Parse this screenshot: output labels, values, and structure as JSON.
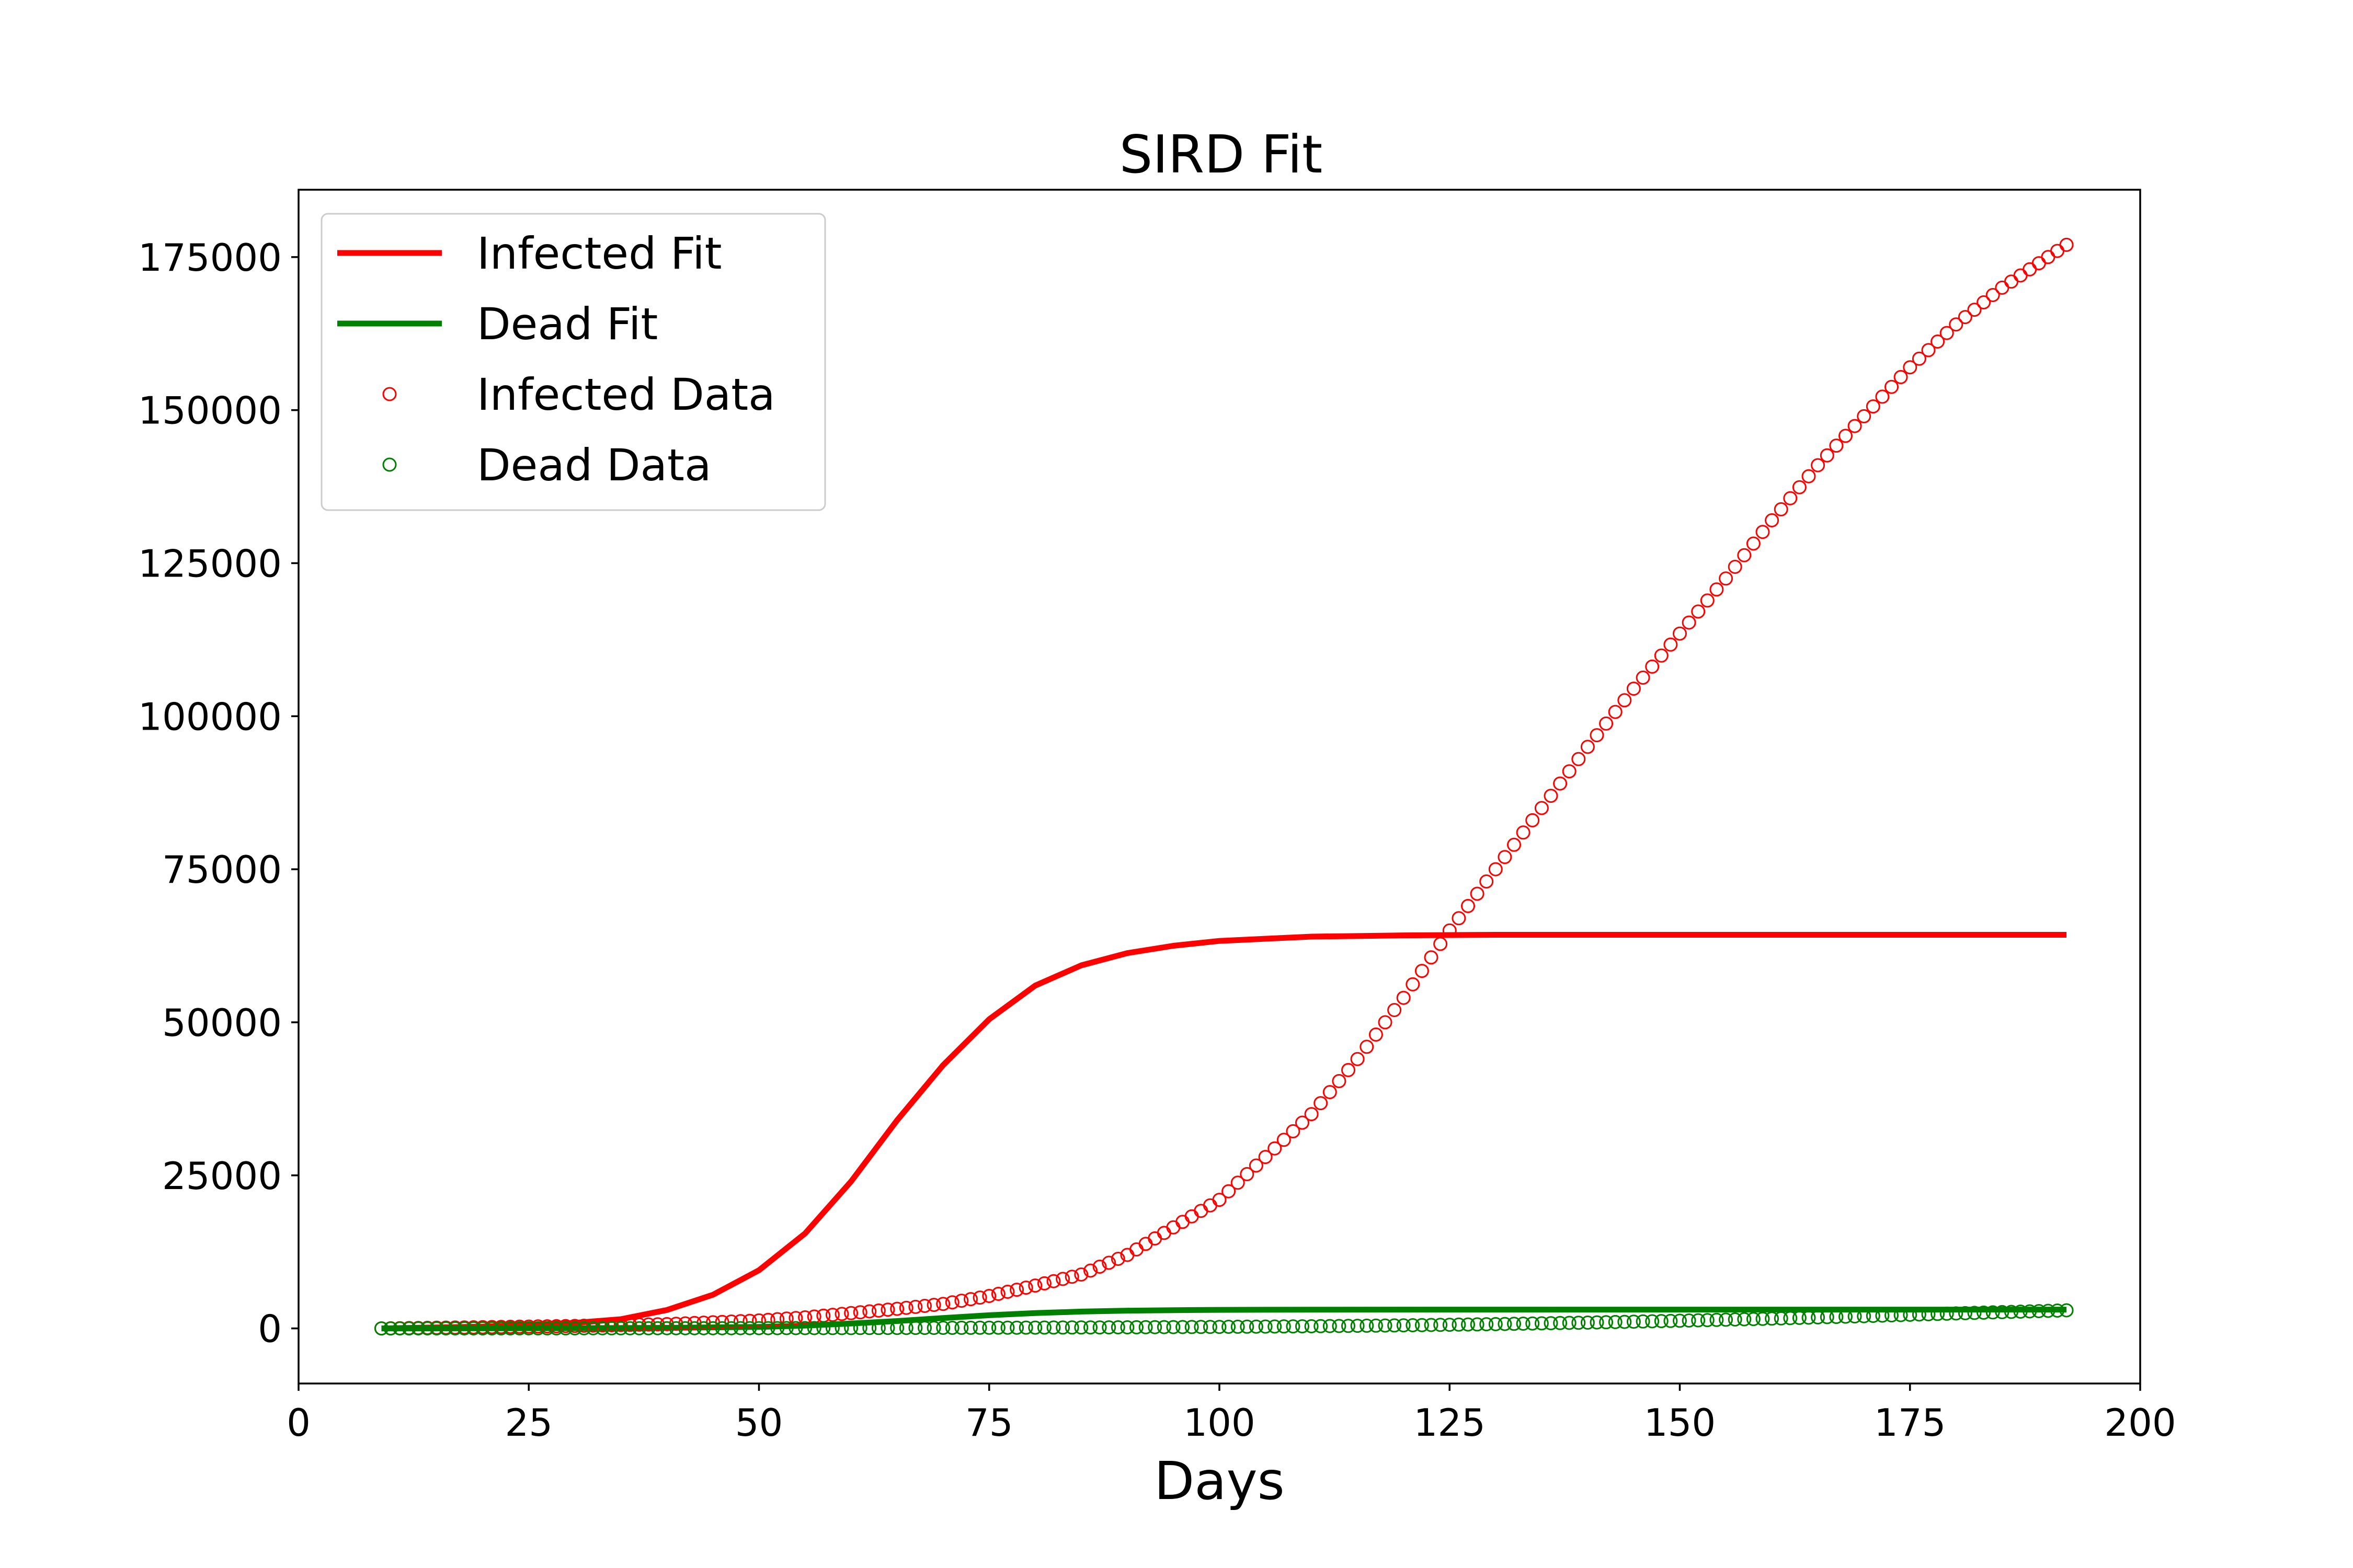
{
  "chart_data": {
    "type": "line",
    "title": "SIRD Fit",
    "xlabel": "Days",
    "ylabel": "",
    "xlim": [
      0,
      200
    ],
    "ylim": [
      -9000,
      186000
    ],
    "xticks": [
      0,
      25,
      50,
      75,
      100,
      125,
      150,
      175,
      200
    ],
    "yticks": [
      0,
      25000,
      50000,
      75000,
      100000,
      125000,
      150000,
      175000
    ],
    "xtick_labels": [
      "0",
      "25",
      "50",
      "75",
      "100",
      "125",
      "150",
      "175",
      "200"
    ],
    "ytick_labels": [
      "0",
      "25000",
      "50000",
      "75000",
      "100000",
      "125000",
      "150000",
      "175000"
    ],
    "grid": false,
    "legend_position": "top-left",
    "colors": {
      "infected": "#ff0000",
      "dead": "#008000",
      "axes": "#000000"
    },
    "series": [
      {
        "name": "Infected Fit",
        "kind": "line",
        "color": "#ff0000",
        "x": [
          9,
          20,
          30,
          35,
          40,
          45,
          50,
          55,
          60,
          65,
          70,
          75,
          80,
          85,
          90,
          95,
          100,
          110,
          120,
          130,
          150,
          170,
          192
        ],
        "y": [
          0,
          300,
          900,
          1500,
          3000,
          5500,
          9500,
          15500,
          24000,
          34000,
          43000,
          50500,
          56000,
          59300,
          61300,
          62500,
          63300,
          64000,
          64200,
          64300,
          64300,
          64300,
          64300
        ]
      },
      {
        "name": "Dead Fit",
        "kind": "line",
        "color": "#008000",
        "x": [
          9,
          30,
          40,
          50,
          55,
          60,
          65,
          70,
          75,
          80,
          85,
          90,
          95,
          100,
          110,
          130,
          150,
          170,
          192
        ],
        "y": [
          0,
          30,
          90,
          250,
          450,
          800,
          1200,
          1700,
          2150,
          2500,
          2750,
          2900,
          2980,
          3030,
          3060,
          3070,
          3070,
          3070,
          3070
        ]
      },
      {
        "name": "Infected Data",
        "kind": "scatter",
        "color": "#ff0000",
        "x": [
          9,
          20,
          30,
          40,
          45,
          50,
          55,
          60,
          65,
          70,
          75,
          80,
          85,
          90,
          95,
          100,
          105,
          110,
          115,
          120,
          125,
          130,
          135,
          140,
          145,
          150,
          155,
          160,
          165,
          170,
          175,
          180,
          185,
          192
        ],
        "y": [
          0,
          200,
          400,
          700,
          1000,
          1300,
          1800,
          2500,
          3200,
          4000,
          5300,
          7000,
          8800,
          12000,
          16500,
          21000,
          28000,
          35000,
          44000,
          54000,
          65000,
          75000,
          85000,
          95000,
          104500,
          113500,
          122500,
          132000,
          141000,
          149000,
          157000,
          164000,
          170000,
          177000
        ]
      },
      {
        "name": "Dead Data",
        "kind": "scatter",
        "color": "#008000",
        "x": [
          9,
          20,
          30,
          40,
          50,
          60,
          70,
          80,
          90,
          100,
          110,
          120,
          130,
          140,
          150,
          160,
          170,
          180,
          192
        ],
        "y": [
          0,
          10,
          20,
          30,
          40,
          60,
          90,
          130,
          180,
          250,
          350,
          500,
          700,
          950,
          1250,
          1600,
          2000,
          2450,
          2950
        ]
      }
    ]
  }
}
